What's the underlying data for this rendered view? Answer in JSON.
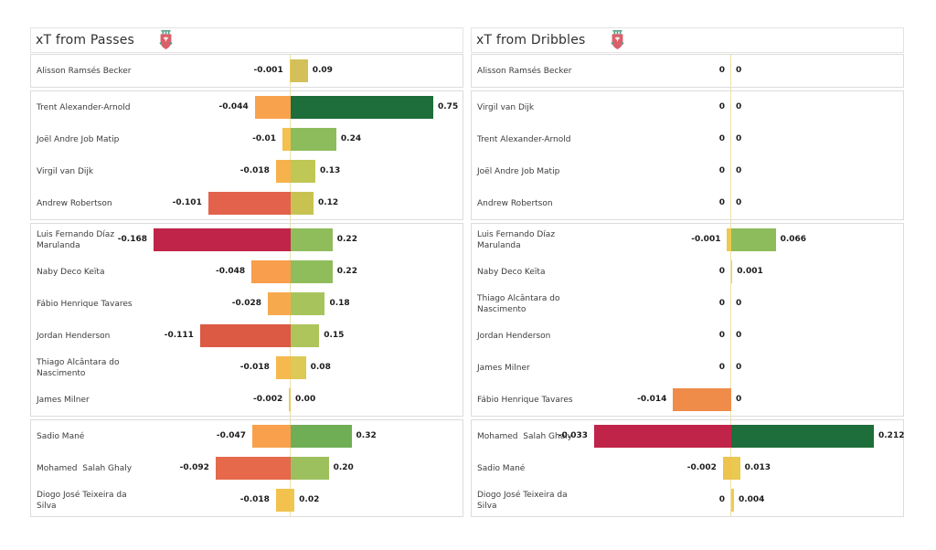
{
  "colors": {
    "group_border": "#dcdcdc",
    "header_border": "#e3e3e3",
    "zero_axis_line": "#ebe2a6",
    "name_text": "#3c3c3c",
    "value_text": "#1c1c1c",
    "title_text": "#2f2f2f",
    "crest_red": "#db5f6a",
    "crest_teal": "#55a28c",
    "crest_bird": "#f6eee8"
  },
  "icons": {
    "panel_badge": "liverpool-crest"
  },
  "chart_data": [
    {
      "type": "bar",
      "orientation": "horizontal-diverging",
      "title": "xT from Passes",
      "neg_axis_limit": -0.168,
      "pos_axis_limit": 0.75,
      "grid": false,
      "legend": "none",
      "groups": [
        {
          "rows": [
            {
              "player": "Alisson Ramsés Becker",
              "neg": -0.001,
              "neg_label": "-0.001",
              "neg_color": "#e9cb55",
              "pos": 0.09,
              "pos_label": "0.09",
              "pos_color": "#d3c05a"
            }
          ]
        },
        {
          "rows": [
            {
              "player": "Trent Alexander-Arnold",
              "neg": -0.044,
              "neg_label": "-0.044",
              "neg_color": "#f9a24e",
              "pos": 0.75,
              "pos_label": "0.75",
              "pos_color": "#1d6e3a"
            },
            {
              "player": "Joël Andre Job Matip",
              "neg": -0.01,
              "neg_label": "-0.01",
              "neg_color": "#f4c04e",
              "pos": 0.24,
              "pos_label": "0.24",
              "pos_color": "#8cbc5b"
            },
            {
              "player": "Virgil van Dijk",
              "neg": -0.018,
              "neg_label": "-0.018",
              "neg_color": "#f6b24d",
              "pos": 0.13,
              "pos_label": "0.13",
              "pos_color": "#bfc755"
            },
            {
              "player": "Andrew Robertson",
              "neg": -0.101,
              "neg_label": "-0.101",
              "neg_color": "#e2624b",
              "pos": 0.12,
              "pos_label": "0.12",
              "pos_color": "#c8c351"
            }
          ]
        },
        {
          "rows": [
            {
              "player": "Luis Fernando Díaz\nMarulanda",
              "neg": -0.168,
              "neg_label": "-0.168",
              "neg_color": "#c02448",
              "pos": 0.22,
              "pos_label": "0.22",
              "pos_color": "#8fbd5c"
            },
            {
              "player": "Naby Deco Keïta",
              "neg": -0.048,
              "neg_label": "-0.048",
              "neg_color": "#f89e4c",
              "pos": 0.22,
              "pos_label": "0.22",
              "pos_color": "#8fbd5c"
            },
            {
              "player": "Fábio Henrique Tavares",
              "neg": -0.028,
              "neg_label": "-0.028",
              "neg_color": "#f7aa4d",
              "pos": 0.18,
              "pos_label": "0.18",
              "pos_color": "#a7c45c"
            },
            {
              "player": "Jordan Henderson",
              "neg": -0.111,
              "neg_label": "-0.111",
              "neg_color": "#dc5944",
              "pos": 0.15,
              "pos_label": "0.15",
              "pos_color": "#adc55a"
            },
            {
              "player": "Thiago Alcântara do\nNascimento",
              "neg": -0.018,
              "neg_label": "-0.018",
              "neg_color": "#f5b94d",
              "pos": 0.08,
              "pos_label": "0.08",
              "pos_color": "#dcc956"
            },
            {
              "player": "James Milner",
              "neg": -0.002,
              "neg_label": "-0.002",
              "neg_color": "#e8cb57",
              "pos": 0,
              "pos_label": "0.00",
              "pos_color": "#e8cb57"
            }
          ]
        },
        {
          "rows": [
            {
              "player": "Sadio Mané",
              "neg": -0.047,
              "neg_label": "-0.047",
              "neg_color": "#f9a04d",
              "pos": 0.32,
              "pos_label": "0.32",
              "pos_color": "#6fae54"
            },
            {
              "player": "Mohamed  Salah Ghaly",
              "neg": -0.092,
              "neg_label": "-0.092",
              "neg_color": "#e5694a",
              "pos": 0.2,
              "pos_label": "0.20",
              "pos_color": "#9cc05d"
            },
            {
              "player": "Diogo José Teixeira da\nSilva",
              "neg": -0.018,
              "neg_label": "-0.018",
              "neg_color": "#f3c24e",
              "pos": 0.02,
              "pos_label": "0.02",
              "pos_color": "#ecc84e"
            }
          ]
        }
      ]
    },
    {
      "type": "bar",
      "orientation": "horizontal-diverging",
      "title": "xT from Dribbles",
      "neg_axis_limit": -0.033,
      "pos_axis_limit": 0.212,
      "grid": false,
      "legend": "none",
      "groups": [
        {
          "rows": [
            {
              "player": "Alisson Ramsés Becker",
              "neg": 0,
              "neg_label": "0",
              "neg_color": "#e9d261",
              "pos": 0,
              "pos_label": "0",
              "pos_color": "#e9d261"
            }
          ]
        },
        {
          "rows": [
            {
              "player": "Virgil van Dijk",
              "neg": 0,
              "neg_label": "0",
              "neg_color": "#e9d261",
              "pos": 0,
              "pos_label": "0",
              "pos_color": "#e9d261"
            },
            {
              "player": "Trent Alexander-Arnold",
              "neg": 0,
              "neg_label": "0",
              "neg_color": "#e9d261",
              "pos": 0,
              "pos_label": "0",
              "pos_color": "#e9d261"
            },
            {
              "player": "Joël Andre Job Matip",
              "neg": 0,
              "neg_label": "0",
              "neg_color": "#e9d261",
              "pos": 0,
              "pos_label": "0",
              "pos_color": "#e9d261"
            },
            {
              "player": "Andrew Robertson",
              "neg": 0,
              "neg_label": "0",
              "neg_color": "#e9d261",
              "pos": 0,
              "pos_label": "0",
              "pos_color": "#e9d261"
            }
          ]
        },
        {
          "rows": [
            {
              "player": "Luis Fernando Díaz\nMarulanda",
              "neg": -0.001,
              "neg_label": "-0.001",
              "neg_color": "#edc94f",
              "pos": 0.066,
              "pos_label": "0.066",
              "pos_color": "#8cbc5b"
            },
            {
              "player": "Naby Deco Keïta",
              "neg": 0,
              "neg_label": "0",
              "neg_color": "#e9d261",
              "pos": 0.001,
              "pos_label": "0.001",
              "pos_color": "#edd05a"
            },
            {
              "player": "Thiago Alcântara do\nNascimento",
              "neg": 0,
              "neg_label": "0",
              "neg_color": "#e9d261",
              "pos": 0,
              "pos_label": "0",
              "pos_color": "#e9d261"
            },
            {
              "player": "Jordan Henderson",
              "neg": 0,
              "neg_label": "0",
              "neg_color": "#e9d261",
              "pos": 0,
              "pos_label": "0",
              "pos_color": "#e9d261"
            },
            {
              "player": "James Milner",
              "neg": 0,
              "neg_label": "0",
              "neg_color": "#e9d261",
              "pos": 0,
              "pos_label": "0",
              "pos_color": "#e9d261"
            },
            {
              "player": "Fábio Henrique Tavares",
              "neg": -0.014,
              "neg_label": "-0.014",
              "neg_color": "#f08c4a",
              "pos": 0,
              "pos_label": "0",
              "pos_color": "#e9d261"
            }
          ]
        },
        {
          "rows": [
            {
              "player": "Mohamed  Salah Ghaly",
              "neg": -0.033,
              "neg_label": "-0.033",
              "neg_color": "#c02448",
              "pos": 0.212,
              "pos_label": "0.212",
              "pos_color": "#1d6e3a"
            },
            {
              "player": "Sadio Mané",
              "neg": -0.002,
              "neg_label": "-0.002",
              "neg_color": "#eec34e",
              "pos": 0.013,
              "pos_label": "0.013",
              "pos_color": "#e9c94f"
            },
            {
              "player": "Diogo José Teixeira da\nSilva",
              "neg": 0,
              "neg_label": "0",
              "neg_color": "#e9d261",
              "pos": 0.004,
              "pos_label": "0.004",
              "pos_color": "#ecce54"
            }
          ]
        }
      ]
    }
  ]
}
